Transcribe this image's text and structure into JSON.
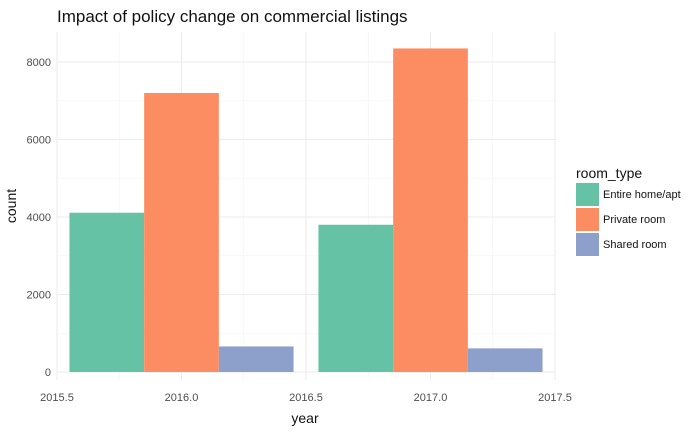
{
  "chart_data": {
    "type": "bar",
    "title": "Impact of policy change on commercial listings",
    "xlabel": "year",
    "ylabel": "count",
    "xlim": [
      2015.5,
      2017.5
    ],
    "ylim": [
      0,
      8400
    ],
    "x_ticks": [
      2015.5,
      2016.0,
      2016.5,
      2017.0,
      2017.5
    ],
    "x_tick_labels": [
      "2015.5",
      "2016.0",
      "2016.5",
      "2017.0",
      "2017.5"
    ],
    "y_ticks": [
      0,
      2000,
      4000,
      6000,
      8000
    ],
    "y_tick_labels": [
      "0",
      "2000",
      "4000",
      "6000",
      "8000"
    ],
    "x": [
      2016,
      2017
    ],
    "bar_group_width": 0.9,
    "grid": true,
    "legend": {
      "title": "room_type",
      "placement": "right"
    },
    "series": [
      {
        "name": "Entire home/apt",
        "color": "#66c2a5",
        "values": [
          4110,
          3800
        ]
      },
      {
        "name": "Private room",
        "color": "#fc8d62",
        "values": [
          7200,
          8350
        ]
      },
      {
        "name": "Shared room",
        "color": "#8da0cb",
        "values": [
          660,
          610
        ]
      }
    ]
  }
}
